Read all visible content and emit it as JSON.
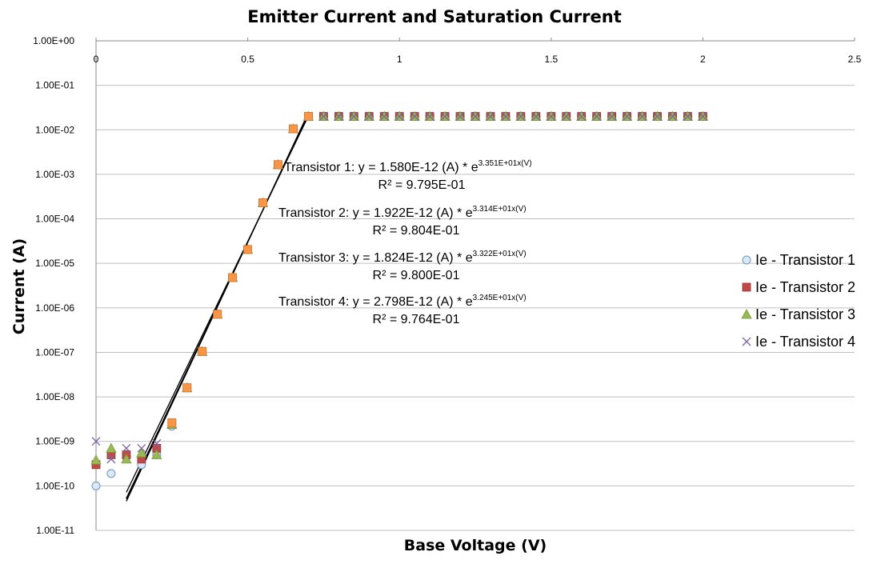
{
  "chart_data": {
    "type": "scatter",
    "title": "Emitter Current and Saturation Current",
    "xlabel": "Base Voltage (V)",
    "ylabel": "Current (A)",
    "xlim": [
      0,
      2.5
    ],
    "ylim": [
      1e-11,
      1
    ],
    "y_scale": "log",
    "x_ticks": [
      "0",
      "0.5",
      "1",
      "1.5",
      "2",
      "2.5"
    ],
    "y_ticks": [
      "1.00E+00",
      "1.00E-01",
      "1.00E-02",
      "1.00E-03",
      "1.00E-04",
      "1.00E-05",
      "1.00E-06",
      "1.00E-07",
      "1.00E-08",
      "1.00E-09",
      "1.00E-10",
      "1.00E-11"
    ],
    "x_axis_position": "top",
    "grid": "horizontal",
    "legend_position": "right",
    "x": [
      0,
      0.05,
      0.1,
      0.15,
      0.2,
      0.25,
      0.3,
      0.35,
      0.4,
      0.45,
      0.5,
      0.55,
      0.6,
      0.65,
      0.7,
      0.75,
      0.8,
      0.85,
      0.9,
      0.95,
      1,
      1.05,
      1.1,
      1.15,
      1.2,
      1.25,
      1.3,
      1.35,
      1.4,
      1.45,
      1.5,
      1.55,
      1.6,
      1.65,
      1.7,
      1.75,
      1.8,
      1.85,
      1.9,
      1.95,
      2
    ],
    "series": [
      {
        "name": "Ie - Transistor 1",
        "marker": "circle",
        "color": "#dbe9f7",
        "stroke": "#6f95c4",
        "values": [
          1e-10,
          1.9e-10,
          4.5e-10,
          3e-10,
          5e-10,
          2.2e-09,
          1.6e-08,
          1.05e-07,
          7.2e-07,
          4.8e-06,
          2.05e-05,
          0.00023,
          0.00165,
          0.0105,
          0.02,
          0.02,
          0.02,
          0.02,
          0.02,
          0.02,
          0.02,
          0.02,
          0.02,
          0.02,
          0.02,
          0.02,
          0.02,
          0.02,
          0.02,
          0.02,
          0.02,
          0.02,
          0.02,
          0.02,
          0.02,
          0.02,
          0.02,
          0.02,
          0.02,
          0.02,
          0.02
        ]
      },
      {
        "name": "Ie - Transistor 2",
        "marker": "square",
        "color": "#be4b48",
        "stroke": "#9b3431",
        "values": [
          3e-10,
          5e-10,
          5e-10,
          4e-10,
          7e-10,
          2.6e-09,
          1.6e-08,
          1.05e-07,
          7.2e-07,
          4.8e-06,
          2.05e-05,
          0.00023,
          0.00165,
          0.0105,
          0.02,
          0.02,
          0.02,
          0.02,
          0.02,
          0.02,
          0.02,
          0.02,
          0.02,
          0.02,
          0.02,
          0.02,
          0.02,
          0.02,
          0.02,
          0.02,
          0.02,
          0.02,
          0.02,
          0.02,
          0.02,
          0.02,
          0.02,
          0.02,
          0.02,
          0.02,
          0.02
        ]
      },
      {
        "name": "Ie - Transistor 3",
        "marker": "triangle",
        "color": "#98b954",
        "stroke": "#7a9a3a",
        "values": [
          3.8e-10,
          7e-10,
          4e-10,
          5.5e-10,
          5e-10,
          2.4e-09,
          1.6e-08,
          1.05e-07,
          7.2e-07,
          4.8e-06,
          2.05e-05,
          0.00023,
          0.00165,
          0.0105,
          0.02,
          0.02,
          0.02,
          0.02,
          0.02,
          0.02,
          0.02,
          0.02,
          0.02,
          0.02,
          0.02,
          0.02,
          0.02,
          0.02,
          0.02,
          0.02,
          0.02,
          0.02,
          0.02,
          0.02,
          0.02,
          0.02,
          0.02,
          0.02,
          0.02,
          0.02,
          0.02
        ]
      },
      {
        "name": "Ie - Transistor 4",
        "marker": "x",
        "color": "#7d60a0",
        "stroke": "#7d60a0",
        "values": [
          1e-09,
          4e-10,
          7e-10,
          7e-10,
          9e-10,
          2.5e-09,
          1.6e-08,
          1.05e-07,
          7.2e-07,
          4.8e-06,
          2.05e-05,
          0.00023,
          0.00165,
          0.0105,
          0.02,
          0.02,
          0.02,
          0.02,
          0.02,
          0.02,
          0.02,
          0.02,
          0.02,
          0.02,
          0.02,
          0.02,
          0.02,
          0.02,
          0.02,
          0.02,
          0.02,
          0.02,
          0.02,
          0.02,
          0.02,
          0.02,
          0.02,
          0.02,
          0.02,
          0.02,
          0.02
        ]
      },
      {
        "name": "",
        "marker": "square",
        "color": "#f79646",
        "stroke": "#d87a30",
        "values": [
          null,
          null,
          null,
          null,
          null,
          2.6e-09,
          1.6e-08,
          1.05e-07,
          7.2e-07,
          4.8e-06,
          2.05e-05,
          0.00023,
          0.00165,
          0.0105,
          0.02,
          null,
          null,
          null,
          null,
          null,
          null,
          null,
          null,
          null,
          null,
          null,
          null,
          null,
          null,
          null,
          null,
          null,
          null,
          null,
          null,
          null,
          null,
          null,
          null,
          null,
          null
        ]
      }
    ],
    "trendlines": [
      {
        "a": 1.58e-12,
        "b": 33.51,
        "x_range": [
          0.1,
          0.7
        ]
      },
      {
        "a": 1.922e-12,
        "b": 33.14,
        "x_range": [
          0.1,
          0.7
        ]
      },
      {
        "a": 1.824e-12,
        "b": 33.22,
        "x_range": [
          0.1,
          0.7
        ]
      },
      {
        "a": 2.798e-12,
        "b": 32.45,
        "x_range": [
          0.1,
          0.7
        ]
      }
    ],
    "annotations": [
      {
        "main": "Transistor 1: y = 1.580E-12 (A) * e",
        "exp": "3.351E+01x(V)",
        "r2": "R² = 9.795E-01"
      },
      {
        "main": "Transistor 2: y = 1.922E-12 (A) * e",
        "exp": "3.314E+01x(V)",
        "r2": "R² = 9.804E-01"
      },
      {
        "main": "Transistor 3: y = 1.824E-12 (A) * e",
        "exp": "3.322E+01x(V)",
        "r2": "R² = 9.800E-01"
      },
      {
        "main": "Transistor 4: y = 2.798E-12 (A) * e",
        "exp": "3.245E+01x(V)",
        "r2": "R² = 9.764E-01"
      }
    ]
  }
}
